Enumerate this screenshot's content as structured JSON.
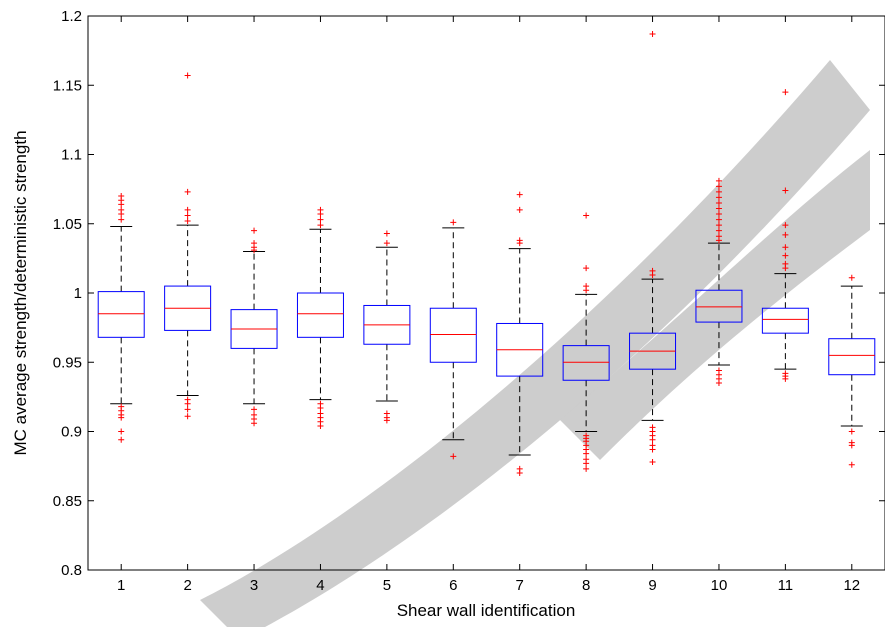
{
  "chart_data": {
    "type": "box",
    "title": "",
    "xlabel": "Shear wall identification",
    "ylabel": "MC average strength/deterministic strength",
    "ylim": [
      0.8,
      1.2
    ],
    "yticks": [
      "0.8",
      "0.85",
      "0.9",
      "0.95",
      "1",
      "1.05",
      "1.1",
      "1.15",
      "1.2"
    ],
    "categories": [
      "1",
      "2",
      "3",
      "4",
      "5",
      "6",
      "7",
      "8",
      "9",
      "10",
      "11",
      "12"
    ],
    "grid": false,
    "colors": {
      "box": "#0000ff",
      "median": "#ff0000",
      "whisker": "#000000",
      "outlier": "#ff0000",
      "watermark": "#c8c8c8"
    },
    "boxes": [
      {
        "q1": 0.968,
        "median": 0.985,
        "q3": 1.001,
        "whisker_low": 0.92,
        "whisker_high": 1.048,
        "outliers": [
          1.07,
          1.067,
          1.064,
          1.06,
          1.057,
          1.053,
          0.918,
          0.915,
          0.912,
          0.91,
          0.9,
          0.894
        ]
      },
      {
        "q1": 0.973,
        "median": 0.989,
        "q3": 1.005,
        "whisker_low": 0.926,
        "whisker_high": 1.049,
        "outliers": [
          1.157,
          1.073,
          1.06,
          1.056,
          1.052,
          0.923,
          0.92,
          0.916,
          0.911
        ]
      },
      {
        "q1": 0.96,
        "median": 0.974,
        "q3": 0.988,
        "whisker_low": 0.92,
        "whisker_high": 1.03,
        "outliers": [
          1.045,
          1.036,
          1.033,
          1.031,
          0.916,
          0.912,
          0.909,
          0.906
        ]
      },
      {
        "q1": 0.968,
        "median": 0.985,
        "q3": 1.0,
        "whisker_low": 0.923,
        "whisker_high": 1.046,
        "outliers": [
          1.06,
          1.057,
          1.053,
          1.049,
          0.92,
          0.917,
          0.913,
          0.91,
          0.907,
          0.904
        ]
      },
      {
        "q1": 0.963,
        "median": 0.977,
        "q3": 0.991,
        "whisker_low": 0.922,
        "whisker_high": 1.033,
        "outliers": [
          1.043,
          1.036,
          0.913,
          0.91,
          0.908
        ]
      },
      {
        "q1": 0.95,
        "median": 0.97,
        "q3": 0.989,
        "whisker_low": 0.894,
        "whisker_high": 1.047,
        "outliers": [
          1.051,
          0.882
        ]
      },
      {
        "q1": 0.94,
        "median": 0.959,
        "q3": 0.978,
        "whisker_low": 0.883,
        "whisker_high": 1.032,
        "outliers": [
          1.071,
          1.06,
          1.038,
          1.036,
          0.873,
          0.87
        ]
      },
      {
        "q1": 0.937,
        "median": 0.95,
        "q3": 0.962,
        "whisker_low": 0.9,
        "whisker_high": 0.999,
        "outliers": [
          1.056,
          1.018,
          1.005,
          1.002,
          0.897,
          0.895,
          0.893,
          0.89,
          0.887,
          0.884,
          0.88,
          0.877,
          0.873
        ]
      },
      {
        "q1": 0.945,
        "median": 0.958,
        "q3": 0.971,
        "whisker_low": 0.908,
        "whisker_high": 1.01,
        "outliers": [
          1.187,
          1.016,
          1.013,
          0.903,
          0.9,
          0.897,
          0.894,
          0.89,
          0.887,
          0.878
        ]
      },
      {
        "q1": 0.979,
        "median": 0.99,
        "q3": 1.002,
        "whisker_low": 0.948,
        "whisker_high": 1.036,
        "outliers": [
          1.081,
          1.077,
          1.073,
          1.069,
          1.065,
          1.061,
          1.057,
          1.053,
          1.049,
          1.045,
          1.041,
          1.038,
          0.944,
          0.941,
          0.938,
          0.935
        ]
      },
      {
        "q1": 0.971,
        "median": 0.981,
        "q3": 0.989,
        "whisker_low": 0.945,
        "whisker_high": 1.014,
        "outliers": [
          1.145,
          1.074,
          1.049,
          1.042,
          1.033,
          1.027,
          1.021,
          1.018,
          0.942,
          0.94,
          0.938
        ]
      },
      {
        "q1": 0.941,
        "median": 0.955,
        "q3": 0.967,
        "whisker_low": 0.904,
        "whisker_high": 1.005,
        "outliers": [
          1.011,
          0.9,
          0.892,
          0.89,
          0.876
        ]
      }
    ]
  }
}
